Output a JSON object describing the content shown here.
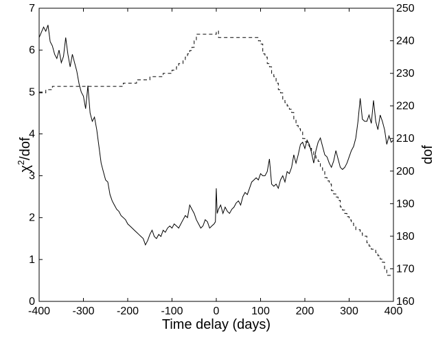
{
  "chart_data": {
    "type": "line",
    "title": "",
    "xlabel": "Time delay (days)",
    "ylabel_left": "χ²/dof",
    "ylabel_left_base": "χ",
    "ylabel_left_sup": "2",
    "ylabel_left_rest": "/dof",
    "ylabel_right": "dof",
    "xlim": [
      -400,
      400
    ],
    "ylim_left": [
      0,
      7
    ],
    "ylim_right": [
      160,
      250
    ],
    "grid": false,
    "legend": "none",
    "x_ticks": [
      "-400",
      "-300",
      "-200",
      "-100",
      "0",
      "100",
      "200",
      "300",
      "400"
    ],
    "y_left_ticks": [
      "0",
      "1",
      "2",
      "3",
      "4",
      "5",
      "6",
      "7"
    ],
    "y_right_ticks": [
      "160",
      "170",
      "180",
      "190",
      "200",
      "210",
      "220",
      "230",
      "240",
      "250"
    ],
    "series": [
      {
        "axis": "left",
        "style": "solid",
        "color": "#000000",
        "x": [
          -400,
          -390,
          -385,
          -380,
          -375,
          -370,
          -365,
          -360,
          -355,
          -350,
          -345,
          -340,
          -335,
          -330,
          -325,
          -320,
          -315,
          -310,
          -305,
          -300,
          -295,
          -290,
          -285,
          -280,
          -275,
          -270,
          -265,
          -260,
          -255,
          -250,
          -245,
          -240,
          -235,
          -230,
          -225,
          -220,
          -215,
          -210,
          -205,
          -200,
          -195,
          -190,
          -185,
          -180,
          -175,
          -170,
          -165,
          -160,
          -155,
          -150,
          -145,
          -140,
          -135,
          -130,
          -125,
          -120,
          -115,
          -110,
          -105,
          -100,
          -95,
          -90,
          -85,
          -80,
          -75,
          -70,
          -65,
          -60,
          -55,
          -50,
          -45,
          -40,
          -35,
          -30,
          -25,
          -20,
          -15,
          -10,
          -5,
          -2,
          0,
          2,
          5,
          10,
          15,
          20,
          25,
          30,
          35,
          40,
          45,
          50,
          55,
          60,
          65,
          70,
          75,
          80,
          85,
          90,
          95,
          100,
          105,
          110,
          115,
          120,
          125,
          130,
          135,
          140,
          145,
          150,
          155,
          160,
          165,
          170,
          175,
          180,
          185,
          190,
          195,
          200,
          205,
          210,
          215,
          220,
          225,
          230,
          235,
          240,
          245,
          250,
          255,
          260,
          265,
          270,
          275,
          280,
          285,
          290,
          295,
          300,
          305,
          310,
          315,
          320,
          325,
          330,
          335,
          340,
          345,
          350,
          355,
          360,
          365,
          370,
          375,
          380,
          385,
          390,
          395,
          400
        ],
        "y": [
          6.3,
          6.55,
          6.45,
          6.6,
          6.2,
          6.1,
          5.9,
          5.8,
          6.0,
          5.7,
          5.85,
          6.3,
          5.9,
          5.6,
          5.9,
          5.7,
          5.5,
          5.2,
          5.0,
          4.9,
          4.6,
          5.15,
          4.5,
          4.3,
          4.4,
          4.1,
          3.7,
          3.3,
          3.1,
          2.9,
          2.85,
          2.55,
          2.4,
          2.3,
          2.2,
          2.15,
          2.05,
          2.0,
          1.95,
          1.85,
          1.8,
          1.75,
          1.7,
          1.65,
          1.6,
          1.55,
          1.5,
          1.35,
          1.45,
          1.6,
          1.7,
          1.55,
          1.5,
          1.6,
          1.55,
          1.7,
          1.65,
          1.75,
          1.8,
          1.75,
          1.85,
          1.8,
          1.75,
          1.85,
          1.95,
          2.05,
          2.0,
          2.3,
          2.2,
          2.1,
          1.95,
          1.85,
          1.75,
          1.8,
          1.95,
          1.9,
          1.75,
          1.8,
          1.85,
          1.9,
          2.7,
          2.1,
          2.2,
          2.3,
          2.1,
          2.25,
          2.15,
          2.1,
          2.2,
          2.25,
          2.35,
          2.4,
          2.3,
          2.5,
          2.6,
          2.55,
          2.7,
          2.85,
          2.9,
          2.95,
          2.9,
          3.05,
          3.0,
          3.0,
          3.1,
          3.4,
          2.8,
          2.75,
          2.8,
          2.7,
          2.9,
          3.0,
          2.85,
          3.1,
          3.05,
          3.2,
          3.5,
          3.3,
          3.5,
          3.75,
          3.8,
          3.65,
          3.85,
          3.75,
          3.55,
          3.3,
          3.6,
          3.8,
          3.9,
          3.7,
          3.5,
          3.45,
          3.3,
          3.2,
          3.35,
          3.6,
          3.4,
          3.2,
          3.15,
          3.2,
          3.3,
          3.45,
          3.6,
          3.7,
          3.9,
          4.3,
          4.85,
          4.35,
          4.3,
          4.3,
          4.45,
          4.25,
          4.8,
          4.3,
          4.1,
          4.45,
          4.3,
          4.1,
          3.75,
          3.95,
          3.8,
          3.85
        ]
      },
      {
        "axis": "right",
        "style": "dashed",
        "color": "#000000",
        "x": [
          -400,
          -390,
          -385,
          -380,
          -375,
          -370,
          -365,
          -355,
          -345,
          -335,
          -325,
          -315,
          -305,
          -295,
          -285,
          -275,
          -265,
          -255,
          -245,
          -235,
          -225,
          -215,
          -210,
          -195,
          -180,
          -165,
          -150,
          -135,
          -120,
          -105,
          -100,
          -95,
          -90,
          -85,
          -80,
          -75,
          -70,
          -65,
          -60,
          -55,
          -50,
          -45,
          -40,
          -30,
          -20,
          -10,
          0,
          5,
          10,
          20,
          30,
          40,
          50,
          60,
          70,
          80,
          90,
          95,
          100,
          105,
          110,
          115,
          120,
          125,
          130,
          135,
          140,
          145,
          150,
          155,
          160,
          165,
          170,
          175,
          180,
          185,
          190,
          195,
          200,
          205,
          210,
          215,
          220,
          225,
          230,
          235,
          240,
          245,
          250,
          255,
          260,
          265,
          270,
          275,
          280,
          285,
          290,
          295,
          300,
          305,
          310,
          315,
          320,
          325,
          330,
          335,
          340,
          345,
          350,
          355,
          360,
          365,
          370,
          375,
          380,
          385,
          390,
          395,
          400
        ],
        "y": [
          224,
          224,
          225,
          225,
          225,
          226,
          226,
          226,
          226,
          226,
          226,
          226,
          226,
          226,
          226,
          226,
          226,
          226,
          226,
          226,
          226,
          226,
          227,
          227,
          228,
          228,
          229,
          229,
          230,
          230,
          231,
          231,
          232,
          233,
          233,
          234,
          235,
          236,
          237,
          238,
          240,
          242,
          242,
          242,
          242,
          242,
          243,
          241,
          241,
          241,
          241,
          241,
          241,
          241,
          241,
          241,
          241,
          240,
          239,
          236,
          235,
          233,
          232,
          230,
          229,
          227,
          225,
          224,
          222,
          221,
          220,
          219,
          218,
          216,
          214,
          213,
          212,
          210,
          209,
          208,
          207,
          206,
          205,
          204,
          203,
          201,
          200,
          198,
          197,
          196,
          194,
          193,
          192,
          191,
          189,
          188,
          187,
          186,
          185,
          184,
          183,
          182,
          182,
          181,
          180,
          180,
          178,
          177,
          176,
          176,
          175,
          174,
          173,
          172,
          170,
          168,
          168,
          168,
          168
        ]
      }
    ]
  }
}
